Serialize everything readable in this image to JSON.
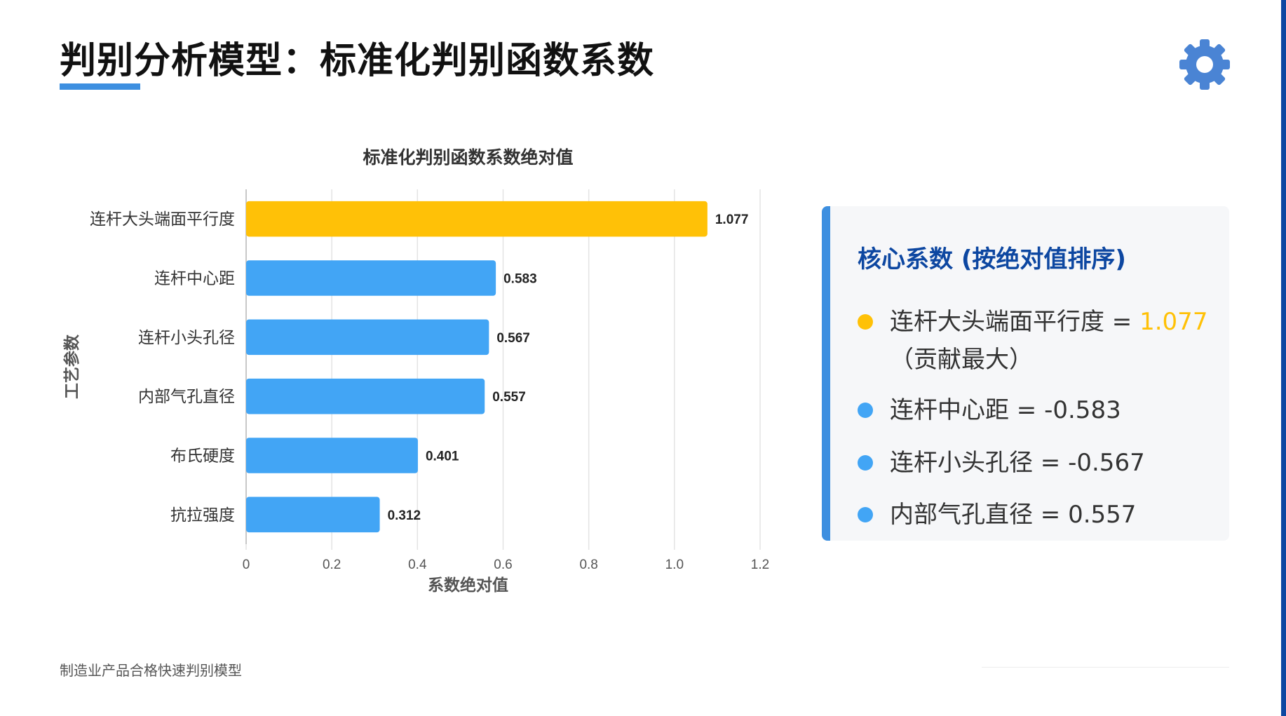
{
  "page": {
    "title": "判别分析模型：标准化判别函数系数",
    "footer": "制造业产品合格快速判别模型",
    "gear_icon": "gear-icon",
    "accent_color": "#3d8fe0",
    "highlight_color": "#ffc107",
    "dark_blue": "#0d47a1"
  },
  "chart_data": {
    "type": "bar",
    "orientation": "horizontal",
    "title": "标准化判别函数系数绝对值",
    "xlabel": "系数绝对值",
    "ylabel": "工艺参数",
    "categories": [
      "连杆大头端面平行度",
      "连杆中心距",
      "连杆小头孔径",
      "内部气孔直径",
      "布氏硬度",
      "抗拉强度"
    ],
    "values": [
      1.077,
      0.583,
      0.567,
      0.557,
      0.401,
      0.312
    ],
    "value_labels": [
      "1.077",
      "0.583",
      "0.567",
      "0.557",
      "0.401",
      "0.312"
    ],
    "colors": [
      "#ffc107",
      "#42a5f5",
      "#42a5f5",
      "#42a5f5",
      "#42a5f5",
      "#42a5f5"
    ],
    "xlim": [
      0,
      1.2
    ],
    "xticks": [
      "0",
      "0.2",
      "0.4",
      "0.6",
      "0.8",
      "1.0",
      "1.2"
    ],
    "grid": true
  },
  "panel": {
    "title": "核心系数 (按绝对值排序)",
    "items": [
      {
        "text": "连杆大头端面平行度 = ",
        "value": "1.077",
        "sub": "（贡献最大）",
        "dot_color": "#ffc107"
      },
      {
        "text": "连杆中心距 = -0.583",
        "dot_color": "#42a5f5"
      },
      {
        "text": "连杆小头孔径 = -0.567",
        "dot_color": "#42a5f5"
      },
      {
        "text": "内部气孔直径 = 0.557",
        "dot_color": "#42a5f5"
      }
    ]
  }
}
